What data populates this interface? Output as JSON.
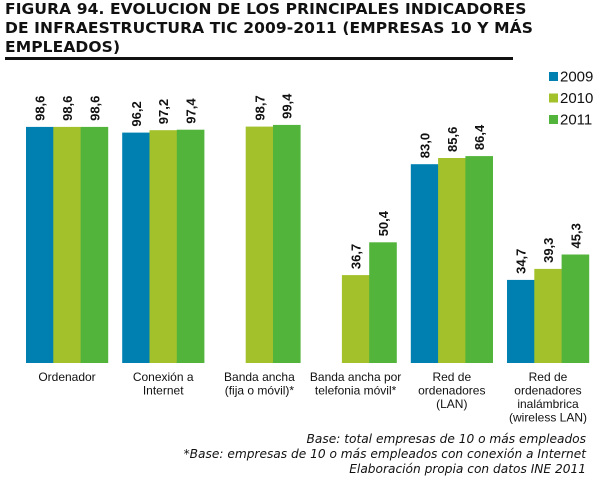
{
  "chart_data": {
    "type": "bar",
    "title": "FIGURA 94. EVOLUCION DE LOS PRINCIPALES INDICADORES DE INFRAESTRUCTURA TIC 2009-2011 (EMPRESAS 10 Y MÁS EMPLEADOS)",
    "title_lines": [
      "FIGURA 94. EVOLUCION DE LOS PRINCIPALES INDICADORES",
      "DE INFRAESTRUCTURA TIC 2009-2011 (EMPRESAS 10 Y MÁS",
      "EMPLEADOS)"
    ],
    "xlabel": "",
    "ylabel": "",
    "ylim": [
      0,
      100
    ],
    "grid": false,
    "legend_position": "top-right",
    "categories": [
      [
        "Ordenador"
      ],
      [
        "Conexión a",
        "Internet"
      ],
      [
        "Banda ancha",
        "(fija o móvil)*"
      ],
      [
        "Banda ancha por",
        "telefonia móvil*"
      ],
      [
        "Red de",
        "ordenadores",
        "(LAN)"
      ],
      [
        "Red de",
        "ordenadores",
        "inalámbrica",
        "(wireless LAN)"
      ]
    ],
    "series": [
      {
        "name": "2009",
        "color": "#0080b0",
        "values": [
          98.6,
          96.2,
          null,
          null,
          83.0,
          34.7
        ],
        "labels": [
          "98,6",
          "96,2",
          "",
          "",
          "83,0",
          "34,7"
        ]
      },
      {
        "name": "2010",
        "color": "#a2c12a",
        "values": [
          98.6,
          97.2,
          98.7,
          36.7,
          85.6,
          39.3
        ],
        "labels": [
          "98,6",
          "97,2",
          "98,7",
          "36,7",
          "85,6",
          "39,3"
        ]
      },
      {
        "name": "2011",
        "color": "#52b43a",
        "values": [
          98.6,
          97.4,
          99.4,
          50.4,
          86.4,
          45.3
        ],
        "labels": [
          "98,6",
          "97,4",
          "99,4",
          "50,4",
          "86,4",
          "45,3"
        ]
      }
    ]
  },
  "notes": [
    "Base: total empresas de 10 o más empleados",
    "*Base: empresas de 10 o más empleados con conexión a Internet",
    "Elaboración propia con datos INE 2011"
  ]
}
